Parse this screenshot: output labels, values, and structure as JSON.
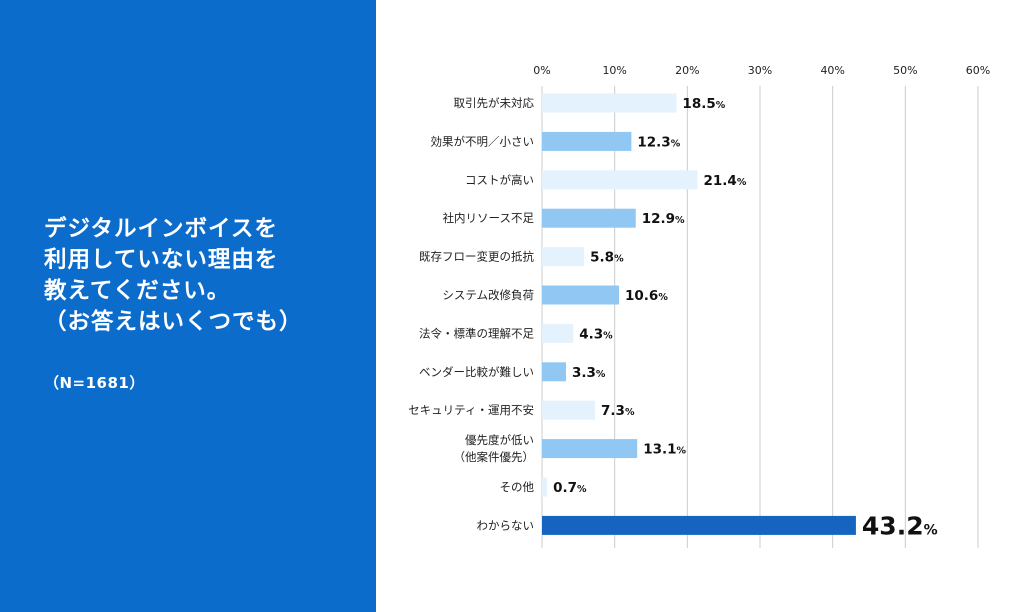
{
  "panel": {
    "question_lines": [
      "デジタルインボイスを",
      "利用していない理由を",
      "教えてください。",
      "（お答えはいくつでも）"
    ],
    "sample": "（N=1681）",
    "background": "#0b6ccc"
  },
  "chart_data": {
    "type": "bar",
    "orientation": "horizontal",
    "title": "デジタルインボイスを利用していない理由を教えてください。（お答えはいくつでも）",
    "sample": "（N=1681）",
    "xlim": [
      0,
      60
    ],
    "x_ticks": [
      0,
      10,
      20,
      30,
      40,
      50,
      60
    ],
    "tick_suffix": "%",
    "value_suffix": "%",
    "grid": true,
    "categories": [
      [
        "取引先が未対応"
      ],
      [
        "効果が不明／小さい"
      ],
      [
        "コストが高い"
      ],
      [
        "社内リソース不足"
      ],
      [
        "既存フロー変更の抵抗"
      ],
      [
        "システム改修負荷"
      ],
      [
        "法令・標準の理解不足"
      ],
      [
        "ベンダー比較が難しい"
      ],
      [
        "セキュリティ・運用不安"
      ],
      [
        "優先度が低い",
        "（他案件優先）"
      ],
      [
        "その他"
      ],
      [
        "わからない"
      ]
    ],
    "values": [
      18.5,
      12.3,
      21.4,
      12.9,
      5.8,
      10.6,
      4.3,
      3.3,
      7.3,
      13.1,
      0.7,
      43.2
    ],
    "value_labels": [
      "18.5",
      "12.3",
      "21.4",
      "12.9",
      "5.8",
      "10.6",
      "4.3",
      "3.3",
      "7.3",
      "13.1",
      "0.7",
      "43.2"
    ],
    "highlight_index": 11,
    "colors": {
      "light": "#e3f2fc",
      "medium": "#90c8f3",
      "highlight": "#1565c0",
      "grid": "#cccccc",
      "text": "#222222",
      "value": "#111111"
    }
  }
}
